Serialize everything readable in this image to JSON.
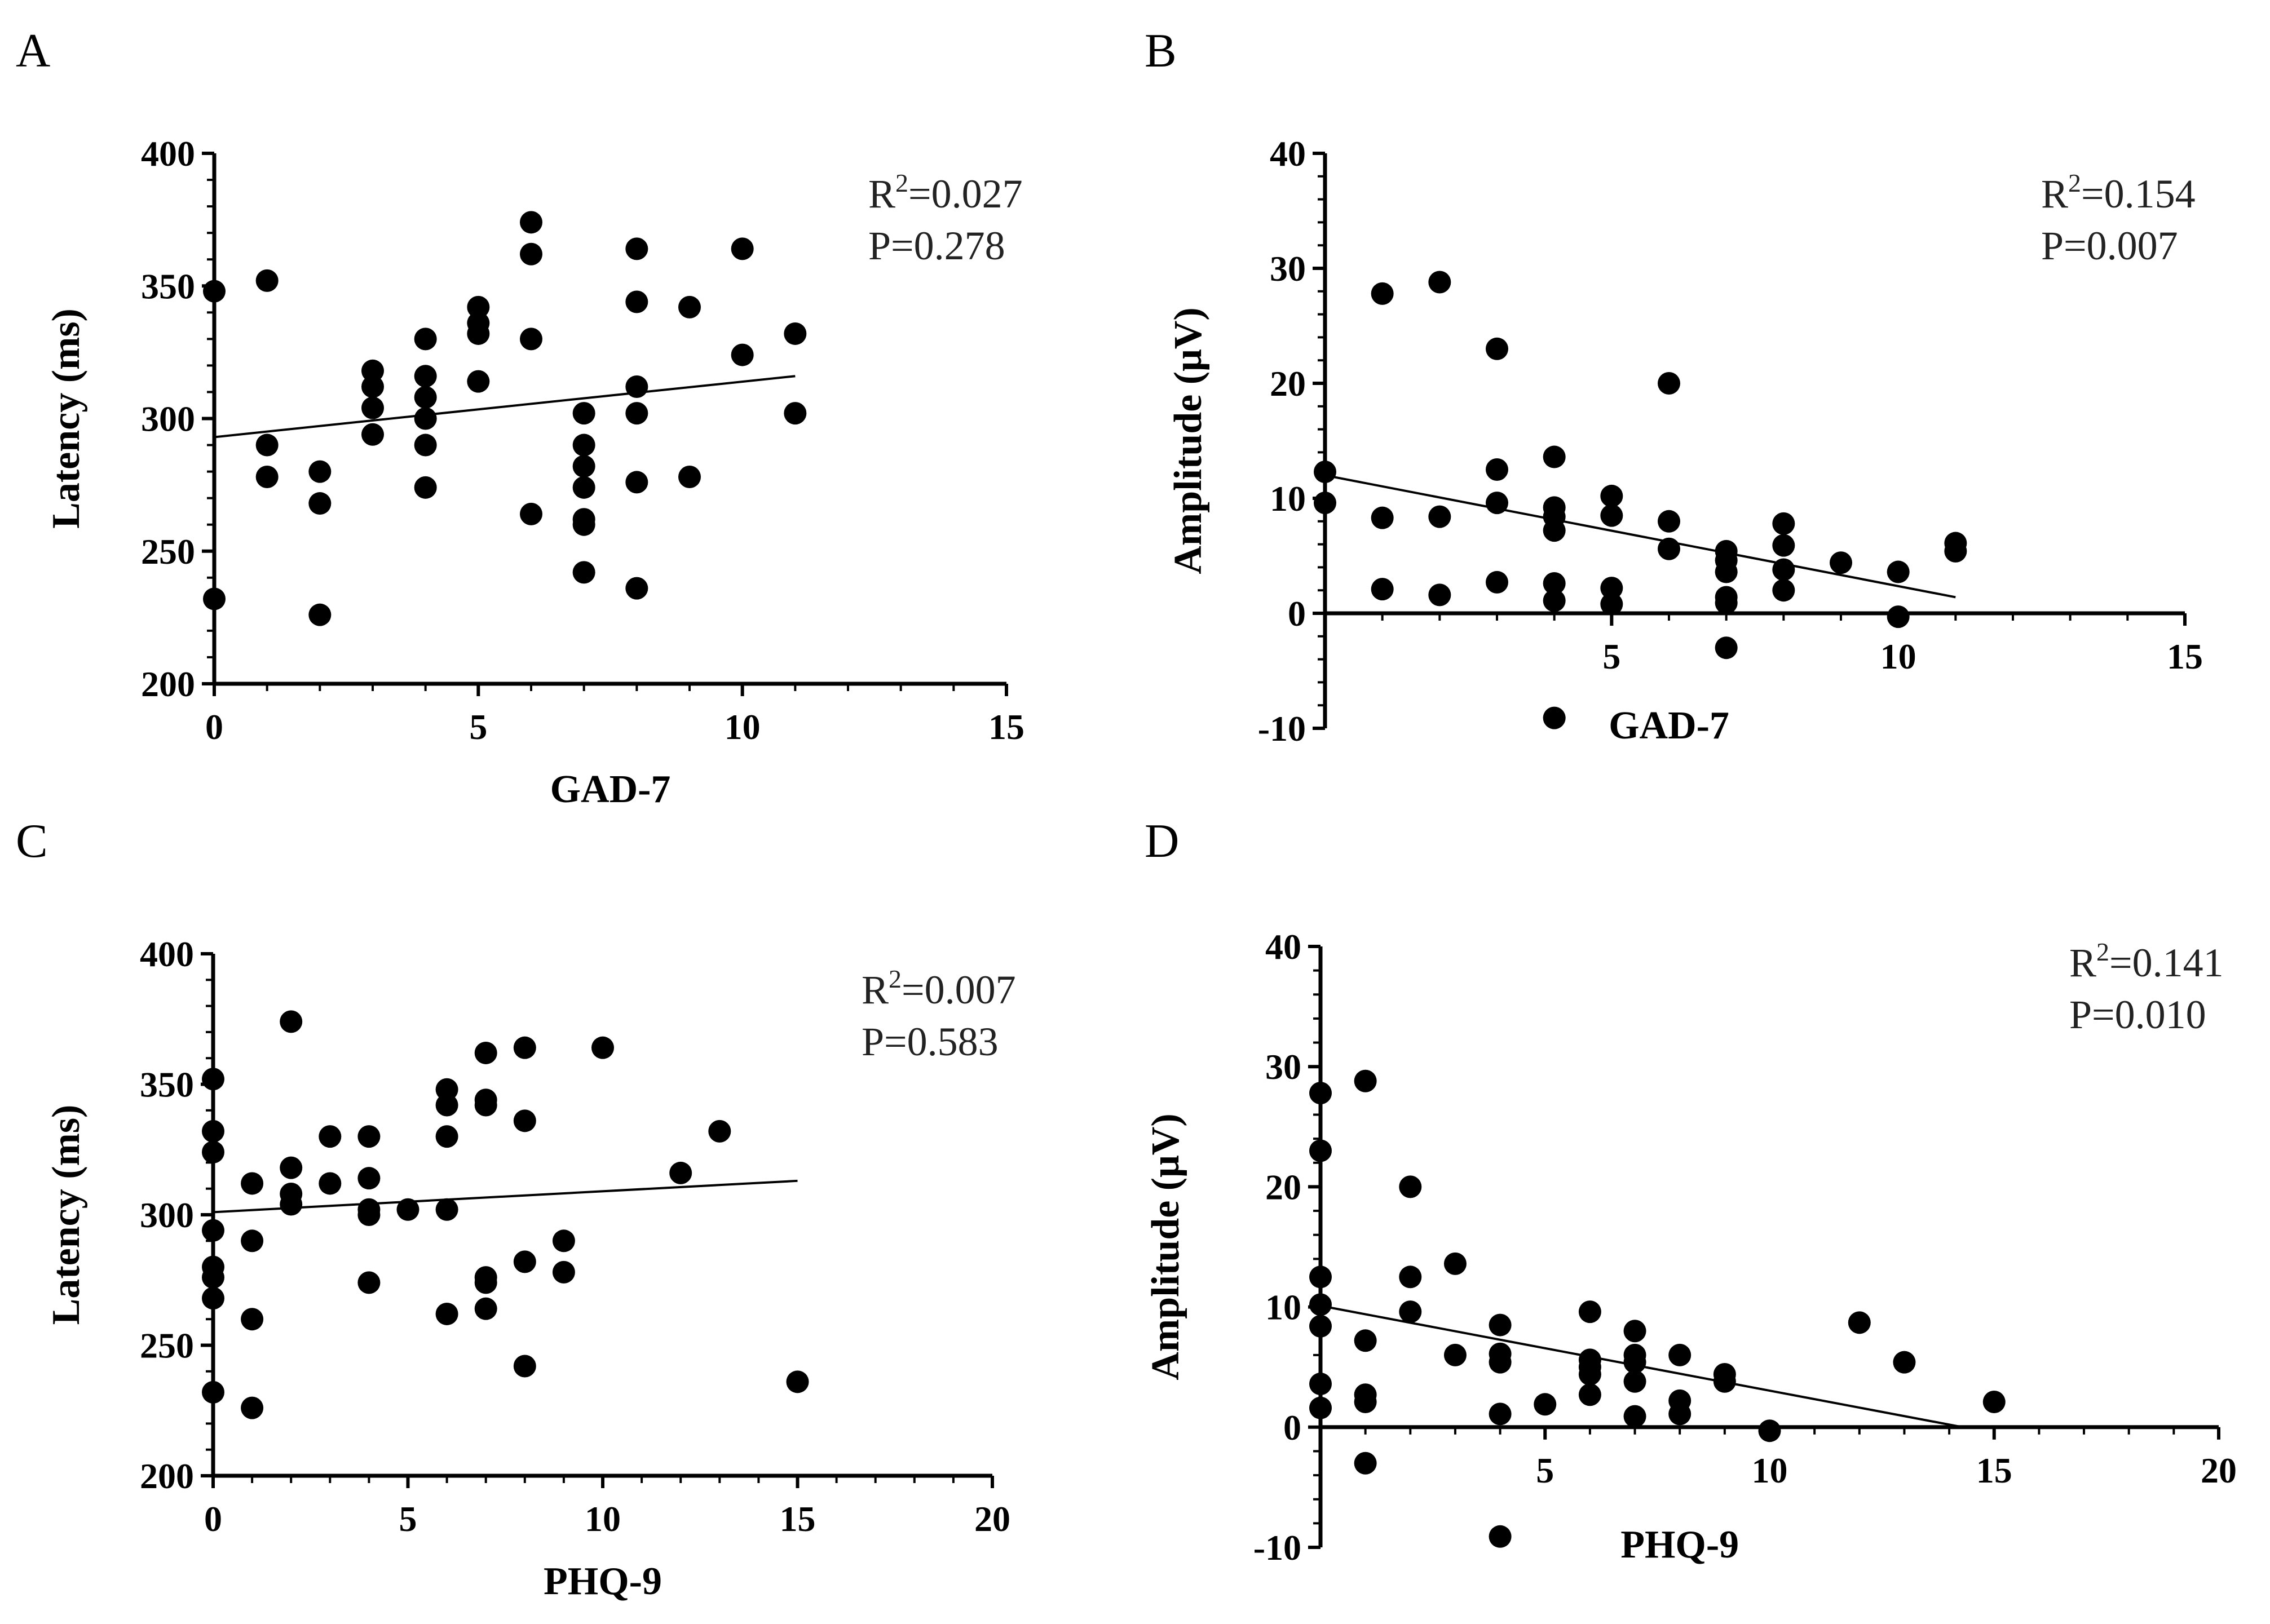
{
  "chart_data": [
    {
      "id": "A",
      "type": "scatter",
      "panel_label": "A",
      "title": "",
      "xlabel": "GAD-7",
      "ylabel": "Latency (ms)",
      "xlim": [
        0,
        15
      ],
      "ylim": [
        200,
        400
      ],
      "xticks": [
        0,
        5,
        10,
        15
      ],
      "yticks": [
        200,
        250,
        300,
        350,
        400
      ],
      "x_minor": 1,
      "y_minor": 10,
      "axis_style": "box",
      "r2_text": "=0.027",
      "p_text": "P=0.278",
      "fit": {
        "x1": 0,
        "y1": 293,
        "x2": 11,
        "y2": 316
      },
      "points": [
        [
          0,
          348
        ],
        [
          0,
          232
        ],
        [
          1,
          352
        ],
        [
          1,
          290
        ],
        [
          1,
          278
        ],
        [
          2,
          280
        ],
        [
          2,
          268
        ],
        [
          2,
          226
        ],
        [
          3,
          318
        ],
        [
          3,
          312
        ],
        [
          3,
          304
        ],
        [
          3,
          294
        ],
        [
          4,
          330
        ],
        [
          4,
          316
        ],
        [
          4,
          308
        ],
        [
          4,
          300
        ],
        [
          4,
          290
        ],
        [
          4,
          274
        ],
        [
          5,
          342
        ],
        [
          5,
          336
        ],
        [
          5,
          332
        ],
        [
          5,
          314
        ],
        [
          6,
          374
        ],
        [
          6,
          362
        ],
        [
          6,
          330
        ],
        [
          6,
          264
        ],
        [
          7,
          302
        ],
        [
          7,
          290
        ],
        [
          7,
          282
        ],
        [
          7,
          274
        ],
        [
          7,
          262
        ],
        [
          7,
          260
        ],
        [
          7,
          242
        ],
        [
          8,
          364
        ],
        [
          8,
          344
        ],
        [
          8,
          312
        ],
        [
          8,
          302
        ],
        [
          8,
          276
        ],
        [
          8,
          236
        ],
        [
          9,
          342
        ],
        [
          9,
          278
        ],
        [
          10,
          364
        ],
        [
          10,
          324
        ],
        [
          11,
          332
        ],
        [
          11,
          302
        ]
      ]
    },
    {
      "id": "B",
      "type": "scatter",
      "panel_label": "B",
      "title": "",
      "xlabel": "GAD-7",
      "ylabel": "Amplitude (μV)",
      "xlim": [
        0,
        15
      ],
      "ylim": [
        -10,
        40
      ],
      "xticks": [
        5,
        10,
        15
      ],
      "yticks": [
        -10,
        0,
        10,
        20,
        30,
        40
      ],
      "x_minor": 1,
      "y_minor": 2,
      "axis_style": "zero",
      "r2_text": "=0.154",
      "p_text": "P=0.007",
      "fit": {
        "x1": 0,
        "y1": 12,
        "x2": 11,
        "y2": 1.4
      },
      "points": [
        [
          0,
          12.3
        ],
        [
          0,
          9.6
        ],
        [
          1,
          27.8
        ],
        [
          1,
          8.3
        ],
        [
          1,
          2.1
        ],
        [
          2,
          28.8
        ],
        [
          2,
          8.4
        ],
        [
          2,
          1.6
        ],
        [
          3,
          23.0
        ],
        [
          3,
          12.5
        ],
        [
          3,
          9.6
        ],
        [
          3,
          2.7
        ],
        [
          4,
          13.6
        ],
        [
          4,
          9.2
        ],
        [
          4,
          8.4
        ],
        [
          4,
          7.2
        ],
        [
          4,
          2.6
        ],
        [
          4,
          1.1
        ],
        [
          4,
          -9.1
        ],
        [
          5,
          10.2
        ],
        [
          5,
          8.5
        ],
        [
          5,
          2.2
        ],
        [
          5,
          0.8
        ],
        [
          6,
          20.0
        ],
        [
          6,
          8.0
        ],
        [
          6,
          5.6
        ],
        [
          7,
          5.4
        ],
        [
          7,
          4.6
        ],
        [
          7,
          3.6
        ],
        [
          7,
          1.4
        ],
        [
          7,
          0.9
        ],
        [
          7,
          -3.0
        ],
        [
          8,
          7.8
        ],
        [
          8,
          5.9
        ],
        [
          8,
          3.8
        ],
        [
          8,
          2.0
        ],
        [
          9,
          4.4
        ],
        [
          10,
          3.6
        ],
        [
          10,
          -0.3
        ],
        [
          11,
          6.1
        ],
        [
          11,
          5.4
        ]
      ]
    },
    {
      "id": "C",
      "type": "scatter",
      "panel_label": "C",
      "title": "",
      "xlabel": "PHQ-9",
      "ylabel": "Latency (ms)",
      "xlim": [
        0,
        20
      ],
      "ylim": [
        200,
        400
      ],
      "xticks": [
        0,
        5,
        10,
        15,
        20
      ],
      "yticks": [
        200,
        250,
        300,
        350,
        400
      ],
      "x_minor": 1,
      "y_minor": 10,
      "axis_style": "box",
      "r2_text": "=0.007",
      "p_text": "P=0.583",
      "fit": {
        "x1": 0,
        "y1": 301,
        "x2": 15,
        "y2": 313
      },
      "points": [
        [
          0,
          352
        ],
        [
          0,
          332
        ],
        [
          0,
          324
        ],
        [
          0,
          294
        ],
        [
          0,
          280
        ],
        [
          0,
          276
        ],
        [
          0,
          268
        ],
        [
          0,
          232
        ],
        [
          1,
          312
        ],
        [
          1,
          290
        ],
        [
          1,
          260
        ],
        [
          1,
          226
        ],
        [
          2,
          374
        ],
        [
          2,
          318
        ],
        [
          2,
          308
        ],
        [
          2,
          304
        ],
        [
          3,
          330
        ],
        [
          3,
          312
        ],
        [
          4,
          330
        ],
        [
          4,
          314
        ],
        [
          4,
          302
        ],
        [
          4,
          300
        ],
        [
          4,
          274
        ],
        [
          5,
          302
        ],
        [
          6,
          348
        ],
        [
          6,
          342
        ],
        [
          6,
          330
        ],
        [
          6,
          302
        ],
        [
          6,
          262
        ],
        [
          7,
          362
        ],
        [
          7,
          344
        ],
        [
          7,
          342
        ],
        [
          7,
          276
        ],
        [
          7,
          274
        ],
        [
          7,
          264
        ],
        [
          8,
          364
        ],
        [
          8,
          336
        ],
        [
          8,
          282
        ],
        [
          8,
          242
        ],
        [
          9,
          290
        ],
        [
          9,
          278
        ],
        [
          10,
          364
        ],
        [
          12,
          316
        ],
        [
          13,
          332
        ],
        [
          15,
          236
        ]
      ]
    },
    {
      "id": "D",
      "type": "scatter",
      "panel_label": "D",
      "title": "",
      "xlabel": "PHQ-9",
      "ylabel": "Amplitude (μV)",
      "xlim": [
        0,
        20
      ],
      "ylim": [
        -10,
        40
      ],
      "xticks": [
        5,
        10,
        15,
        20
      ],
      "yticks": [
        -10,
        0,
        10,
        20,
        30,
        40
      ],
      "x_minor": 1,
      "y_minor": 2,
      "axis_style": "zero",
      "r2_text": "=0.141",
      "p_text": "P=0.010",
      "fit": {
        "x1": 0,
        "y1": 10.1,
        "x2": 14.3,
        "y2": 0
      },
      "points": [
        [
          0,
          27.8
        ],
        [
          0,
          23.0
        ],
        [
          0,
          12.5
        ],
        [
          0,
          10.2
        ],
        [
          0,
          8.4
        ],
        [
          0,
          3.6
        ],
        [
          0,
          1.6
        ],
        [
          1,
          28.8
        ],
        [
          1,
          7.2
        ],
        [
          1,
          2.7
        ],
        [
          1,
          2.1
        ],
        [
          1,
          -3.0
        ],
        [
          2,
          20.0
        ],
        [
          2,
          12.5
        ],
        [
          2,
          9.6
        ],
        [
          3,
          13.6
        ],
        [
          3,
          6.0
        ],
        [
          4,
          8.5
        ],
        [
          4,
          6.1
        ],
        [
          4,
          5.4
        ],
        [
          4,
          1.1
        ],
        [
          4,
          -9.1
        ],
        [
          5,
          1.9
        ],
        [
          6,
          9.6
        ],
        [
          6,
          5.6
        ],
        [
          6,
          5.0
        ],
        [
          6,
          4.4
        ],
        [
          6,
          2.7
        ],
        [
          7,
          8.0
        ],
        [
          7,
          6.0
        ],
        [
          7,
          5.4
        ],
        [
          7,
          3.8
        ],
        [
          7,
          0.9
        ],
        [
          8,
          6.0
        ],
        [
          8,
          2.2
        ],
        [
          8,
          1.1
        ],
        [
          9,
          4.4
        ],
        [
          9,
          3.8
        ],
        [
          10,
          -0.3
        ],
        [
          12,
          8.7
        ],
        [
          13,
          5.4
        ],
        [
          15,
          2.1
        ]
      ]
    }
  ]
}
